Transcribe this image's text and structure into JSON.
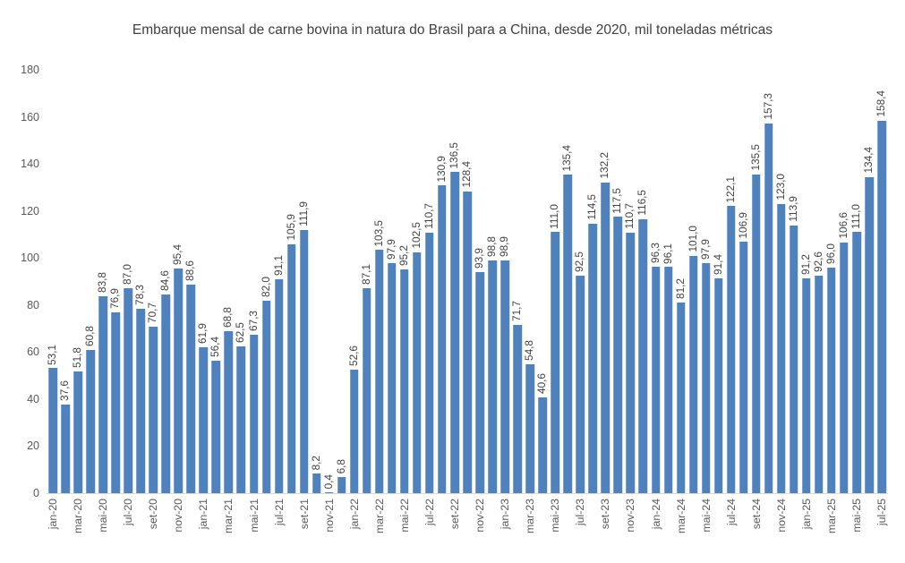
{
  "chart_data": {
    "type": "bar",
    "title": "Embarque mensal de carne bovina in natura do Brasil para a China, desde 2020, mil toneladas métricas",
    "categories": [
      "jan-20",
      "fev-20",
      "mar-20",
      "abr-20",
      "mai-20",
      "jun-20",
      "jul-20",
      "ago-20",
      "set-20",
      "out-20",
      "nov-20",
      "dez-20",
      "jan-21",
      "fev-21",
      "mar-21",
      "abr-21",
      "mai-21",
      "jun-21",
      "jul-21",
      "ago-21",
      "set-21",
      "out-21",
      "nov-21",
      "dez-21",
      "jan-22",
      "fev-22",
      "mar-22",
      "abr-22",
      "mai-22",
      "jun-22",
      "jul-22",
      "ago-22",
      "set-22",
      "out-22",
      "nov-22",
      "dez-22",
      "jan-23",
      "fev-23",
      "mar-23",
      "abr-23",
      "mai-23",
      "jun-23",
      "jul-23",
      "ago-23",
      "set-23",
      "out-23",
      "nov-23",
      "dez-23",
      "jan-24",
      "fev-24",
      "mar-24",
      "abr-24",
      "mai-24",
      "jun-24",
      "jul-24",
      "ago-24",
      "set-24",
      "out-24",
      "nov-24",
      "dez-24",
      "jan-25",
      "fev-25",
      "mar-25",
      "abr-25",
      "mai-25",
      "jun-25",
      "jul-25"
    ],
    "values": [
      53.1,
      37.6,
      51.8,
      60.8,
      83.8,
      76.9,
      87.0,
      78.3,
      70.7,
      84.6,
      95.4,
      88.6,
      61.9,
      56.4,
      68.8,
      62.5,
      67.3,
      82.0,
      91.1,
      105.9,
      111.9,
      8.2,
      0.4,
      6.8,
      52.6,
      87.1,
      103.5,
      97.9,
      95.2,
      102.5,
      110.7,
      130.9,
      136.5,
      128.4,
      93.9,
      98.8,
      98.9,
      71.7,
      54.8,
      40.6,
      111.0,
      135.4,
      92.5,
      114.5,
      132.2,
      117.5,
      110.7,
      116.5,
      96.3,
      96.1,
      81.2,
      101.0,
      97.9,
      91.4,
      122.1,
      106.9,
      135.5,
      157.3,
      123.0,
      113.9,
      91.2,
      92.6,
      96.0,
      106.6,
      111.0,
      134.4,
      158.4
    ],
    "xlabel": "",
    "ylabel": "",
    "ylim": [
      0,
      180
    ],
    "yticks": [
      0,
      20,
      40,
      60,
      80,
      100,
      120,
      140,
      160,
      180
    ],
    "xtick_step": 2,
    "data_labels": "on",
    "data_label_decimal_separator": ",",
    "grid": "off",
    "legend": "none",
    "bar_color": "#4f81bd",
    "data_label_color": "#404040",
    "axis_label_color": "#595959",
    "axis_line_color": "#d9d9d9",
    "background_color": "#ffffff"
  }
}
